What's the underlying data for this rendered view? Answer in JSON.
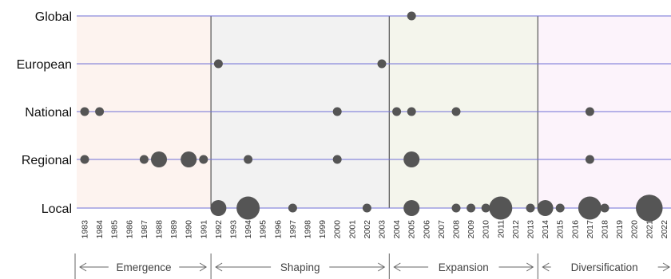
{
  "chart_data": {
    "type": "scatter",
    "y_levels": [
      "Local",
      "Regional",
      "National",
      "European",
      "Global"
    ],
    "x_range": [
      1983,
      2022
    ],
    "years": [
      1983,
      1984,
      1985,
      1986,
      1987,
      1988,
      1989,
      1990,
      1991,
      1992,
      1993,
      1994,
      1995,
      1996,
      1997,
      1998,
      1999,
      2000,
      2001,
      2002,
      2003,
      2004,
      2005,
      2006,
      2007,
      2008,
      2009,
      2010,
      2011,
      2012,
      2013,
      2014,
      2015,
      2016,
      2017,
      2018,
      2019,
      2020,
      2021,
      2022
    ],
    "phases": [
      {
        "label": "Emergence",
        "start": 1983,
        "end": 1991,
        "color": "#fdf3ef"
      },
      {
        "label": "Shaping",
        "start": 1992,
        "end": 2003,
        "color": "#f2f2f2"
      },
      {
        "label": "Expansion",
        "start": 2004,
        "end": 2013,
        "color": "#f4f5ec"
      },
      {
        "label": "Diversification",
        "start": 2014,
        "end": 2022,
        "color": "#fcf3fb"
      }
    ],
    "points": [
      {
        "year": 2005,
        "level": "Global",
        "size": 1
      },
      {
        "year": 1992,
        "level": "European",
        "size": 1
      },
      {
        "year": 2003,
        "level": "European",
        "size": 1
      },
      {
        "year": 1983,
        "level": "National",
        "size": 1
      },
      {
        "year": 1984,
        "level": "National",
        "size": 1
      },
      {
        "year": 2000,
        "level": "National",
        "size": 1
      },
      {
        "year": 2004,
        "level": "National",
        "size": 1
      },
      {
        "year": 2005,
        "level": "National",
        "size": 1
      },
      {
        "year": 2008,
        "level": "National",
        "size": 1
      },
      {
        "year": 2017,
        "level": "National",
        "size": 1
      },
      {
        "year": 1983,
        "level": "Regional",
        "size": 1
      },
      {
        "year": 1987,
        "level": "Regional",
        "size": 1
      },
      {
        "year": 1988,
        "level": "Regional",
        "size": 3
      },
      {
        "year": 1990,
        "level": "Regional",
        "size": 3
      },
      {
        "year": 1991,
        "level": "Regional",
        "size": 1
      },
      {
        "year": 1994,
        "level": "Regional",
        "size": 1
      },
      {
        "year": 2000,
        "level": "Regional",
        "size": 1
      },
      {
        "year": 2005,
        "level": "Regional",
        "size": 3
      },
      {
        "year": 2017,
        "level": "Regional",
        "size": 1
      },
      {
        "year": 1992,
        "level": "Local",
        "size": 3
      },
      {
        "year": 1994,
        "level": "Local",
        "size": 5
      },
      {
        "year": 1997,
        "level": "Local",
        "size": 1
      },
      {
        "year": 2002,
        "level": "Local",
        "size": 1
      },
      {
        "year": 2005,
        "level": "Local",
        "size": 3
      },
      {
        "year": 2008,
        "level": "Local",
        "size": 1
      },
      {
        "year": 2009,
        "level": "Local",
        "size": 1
      },
      {
        "year": 2010,
        "level": "Local",
        "size": 1
      },
      {
        "year": 2011,
        "level": "Local",
        "size": 5
      },
      {
        "year": 2013,
        "level": "Local",
        "size": 1
      },
      {
        "year": 2014,
        "level": "Local",
        "size": 3
      },
      {
        "year": 2015,
        "level": "Local",
        "size": 1
      },
      {
        "year": 2017,
        "level": "Local",
        "size": 5
      },
      {
        "year": 2018,
        "level": "Local",
        "size": 1
      },
      {
        "year": 2021,
        "level": "Local",
        "size": 6
      }
    ],
    "colors": {
      "points": "#555555",
      "level_lines": "#6f6fd6",
      "phase_dividers": "#555555",
      "arrows": "#666666"
    }
  }
}
